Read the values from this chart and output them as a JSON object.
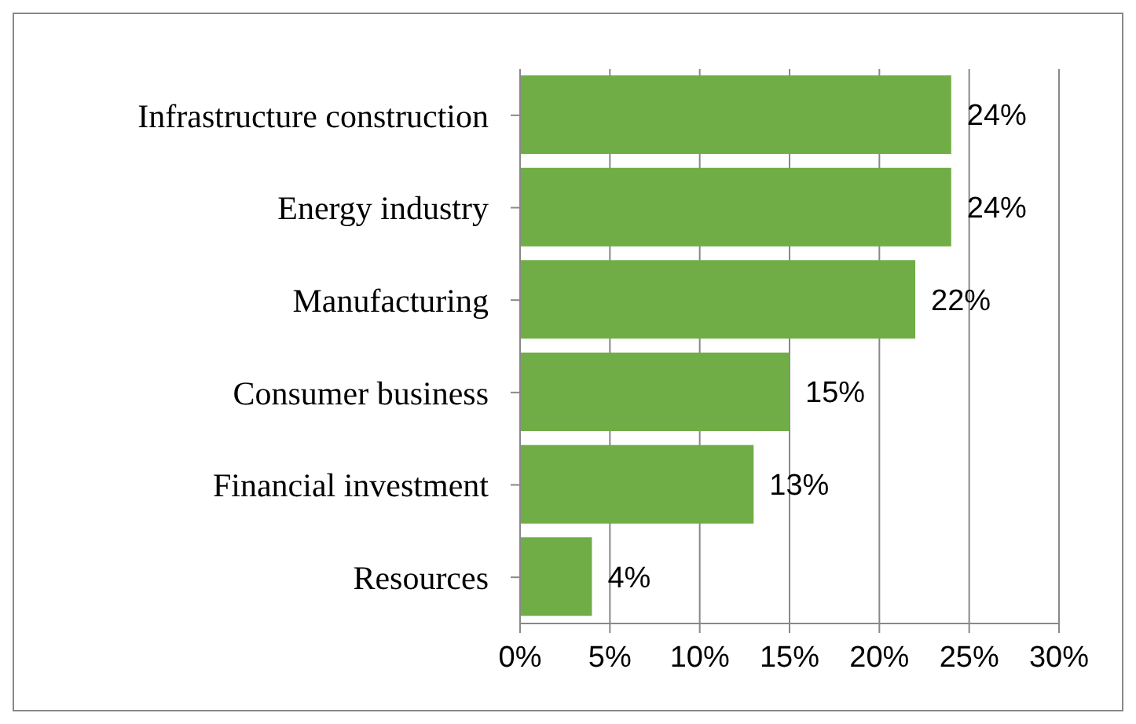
{
  "chart_data": {
    "type": "bar",
    "orientation": "horizontal",
    "categories": [
      "Infrastructure construction",
      "Energy industry",
      "Manufacturing",
      "Consumer business",
      "Financial investment",
      "Resources"
    ],
    "values": [
      24,
      24,
      22,
      15,
      13,
      4
    ],
    "value_labels": [
      "24%",
      "24%",
      "22%",
      "15%",
      "13%",
      "4%"
    ],
    "color": "#70ad47",
    "xlim": [
      0,
      30
    ],
    "xticks": [
      {
        "value": 0,
        "label": "0%"
      },
      {
        "value": 5,
        "label": "5%"
      },
      {
        "value": 10,
        "label": "10%"
      },
      {
        "value": 15,
        "label": "15%"
      },
      {
        "value": 20,
        "label": "20%"
      },
      {
        "value": 25,
        "label": "25%"
      },
      {
        "value": 30,
        "label": "30%"
      }
    ],
    "grid": "x",
    "legend": false
  }
}
